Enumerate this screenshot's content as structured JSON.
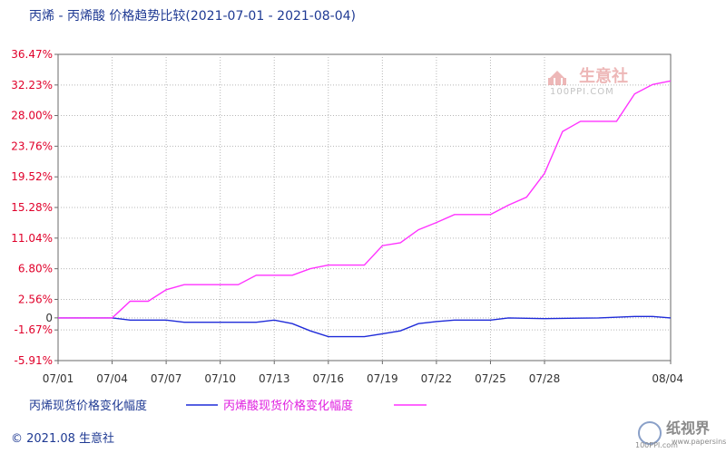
{
  "title": "丙烯 - 丙烯酸 价格趋势比较(2021-07-01 - 2021-08-04)",
  "watermark": {
    "name": "生意社",
    "sub": "100PPI.COM"
  },
  "footer": {
    "text": "© 2021.08 生意社"
  },
  "brand": {
    "text": "纸视界",
    "url": "100PPI.com",
    "sub": "www.papersinsight.net"
  },
  "colors": {
    "propylene": "#1f2bd9",
    "acrylic": "#ff33ff",
    "grid": "#b8b8b8",
    "ytick": "#e0002a"
  },
  "chart_data": {
    "type": "line",
    "title": "丙烯 - 丙烯酸 价格趋势比较(2021-07-01 - 2021-08-04)",
    "xlabel": "",
    "ylabel": "",
    "x_range": [
      "2021-07-01",
      "2021-08-04"
    ],
    "ylim": [
      -5.91,
      36.47
    ],
    "y_ticks": [
      "36.47%",
      "32.23%",
      "28.00%",
      "23.76%",
      "19.52%",
      "15.28%",
      "11.04%",
      "6.80%",
      "2.56%",
      "0",
      "-1.67%",
      "-5.91%"
    ],
    "y_tick_values": [
      36.47,
      32.23,
      28.0,
      23.76,
      19.52,
      15.28,
      11.04,
      6.8,
      2.56,
      0,
      -1.67,
      -5.91
    ],
    "x_ticks": [
      "07/01",
      "07/04",
      "07/07",
      "07/10",
      "07/13",
      "07/16",
      "07/19",
      "07/22",
      "07/25",
      "07/28",
      "08/04"
    ],
    "x_tick_dates": [
      "2021-07-01",
      "2021-07-04",
      "2021-07-07",
      "2021-07-10",
      "2021-07-13",
      "2021-07-16",
      "2021-07-19",
      "2021-07-22",
      "2021-07-25",
      "2021-07-28",
      "2021-08-04"
    ],
    "grid": true,
    "legend_position": "bottom",
    "series": [
      {
        "name": "丙烯现货价格变化幅度",
        "color": "#1f2bd9",
        "points": [
          [
            "2021-07-01",
            0
          ],
          [
            "2021-07-04",
            0
          ],
          [
            "2021-07-05",
            -0.3
          ],
          [
            "2021-07-07",
            -0.3
          ],
          [
            "2021-07-08",
            -0.6
          ],
          [
            "2021-07-12",
            -0.6
          ],
          [
            "2021-07-13",
            -0.3
          ],
          [
            "2021-07-14",
            -0.8
          ],
          [
            "2021-07-15",
            -1.8
          ],
          [
            "2021-07-16",
            -2.6
          ],
          [
            "2021-07-18",
            -2.6
          ],
          [
            "2021-07-19",
            -2.2
          ],
          [
            "2021-07-20",
            -1.8
          ],
          [
            "2021-07-21",
            -0.8
          ],
          [
            "2021-07-22",
            -0.5
          ],
          [
            "2021-07-23",
            -0.3
          ],
          [
            "2021-07-25",
            -0.3
          ],
          [
            "2021-07-26",
            0
          ],
          [
            "2021-07-28",
            -0.1
          ],
          [
            "2021-07-31",
            0
          ],
          [
            "2021-08-02",
            0.2
          ],
          [
            "2021-08-03",
            0.2
          ],
          [
            "2021-08-04",
            0
          ]
        ]
      },
      {
        "name": "丙烯酸现货价格变化幅度",
        "color": "#ff33ff",
        "points": [
          [
            "2021-07-01",
            0
          ],
          [
            "2021-07-04",
            0
          ],
          [
            "2021-07-05",
            2.3
          ],
          [
            "2021-07-06",
            2.3
          ],
          [
            "2021-07-07",
            3.9
          ],
          [
            "2021-07-08",
            4.6
          ],
          [
            "2021-07-11",
            4.6
          ],
          [
            "2021-07-12",
            5.9
          ],
          [
            "2021-07-14",
            5.9
          ],
          [
            "2021-07-15",
            6.8
          ],
          [
            "2021-07-16",
            7.3
          ],
          [
            "2021-07-18",
            7.3
          ],
          [
            "2021-07-19",
            10.0
          ],
          [
            "2021-07-20",
            10.4
          ],
          [
            "2021-07-21",
            12.2
          ],
          [
            "2021-07-22",
            13.2
          ],
          [
            "2021-07-23",
            14.3
          ],
          [
            "2021-07-25",
            14.3
          ],
          [
            "2021-07-26",
            15.6
          ],
          [
            "2021-07-27",
            16.7
          ],
          [
            "2021-07-28",
            20.0
          ],
          [
            "2021-07-29",
            25.8
          ],
          [
            "2021-07-30",
            27.2
          ],
          [
            "2021-08-01",
            27.2
          ],
          [
            "2021-08-02",
            31.0
          ],
          [
            "2021-08-03",
            32.3
          ],
          [
            "2021-08-04",
            32.8
          ]
        ]
      }
    ]
  }
}
